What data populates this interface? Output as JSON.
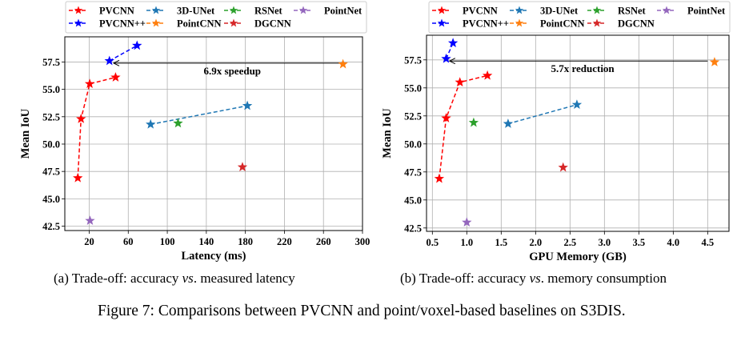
{
  "chart_data": [
    {
      "type": "scatter",
      "xlabel": "Latency (ms)",
      "ylabel": "Mean IoU",
      "xlim": [
        -5,
        300
      ],
      "ylim": [
        42.1,
        59.8
      ],
      "xticks": [
        20,
        60,
        100,
        140,
        180,
        220,
        260,
        300
      ],
      "xtick_labels": [
        "20",
        "60",
        "100",
        "140",
        "180",
        "220",
        "260",
        "300"
      ],
      "yticks": [
        42.5,
        45.0,
        47.5,
        50.0,
        52.5,
        55.0,
        57.5
      ],
      "ytick_labels": [
        "42.5",
        "45.0",
        "47.5",
        "50.0",
        "52.5",
        "55.0",
        "57.5"
      ],
      "grid": true,
      "legend_position": "top",
      "marker": "star",
      "series": [
        {
          "name": "PVCNN",
          "color": "#ff0000",
          "line": "dashed",
          "x": [
            8.3,
            11.6,
            20.5,
            47
          ],
          "y": [
            46.9,
            52.3,
            55.5,
            56.1
          ]
        },
        {
          "name": "PVCNN++",
          "color": "#0000ff",
          "line": "dashed",
          "x": [
            40.7,
            69
          ],
          "y": [
            57.6,
            59.0
          ]
        },
        {
          "name": "3D-UNet",
          "color": "#1f77b4",
          "line": "dashed",
          "x": [
            82.9,
            182
          ],
          "y": [
            51.8,
            53.5
          ]
        },
        {
          "name": "PointCNN",
          "color": "#ff7f0e",
          "line": "dashed",
          "x": [
            280
          ],
          "y": [
            57.3
          ]
        },
        {
          "name": "RSNet",
          "color": "#2ca02c",
          "line": "dashed",
          "x": [
            111
          ],
          "y": [
            51.9
          ]
        },
        {
          "name": "DGCNN",
          "color": "#d62728",
          "line": "dashed",
          "x": [
            177
          ],
          "y": [
            47.9
          ]
        },
        {
          "name": "PointNet",
          "color": "#9467bd",
          "line": "dashed",
          "x": [
            20.8
          ],
          "y": [
            43.0
          ]
        }
      ],
      "annotation": {
        "text": "6.9x speedup",
        "arrow_from": [
          280,
          57.4
        ],
        "arrow_to": [
          45,
          57.4
        ]
      },
      "caption": "(a) Trade-off: accuracy vs. measured latency",
      "caption_parts": [
        "(a) Trade-off: accuracy ",
        "vs",
        ". measured latency"
      ]
    },
    {
      "type": "scatter",
      "xlabel": "GPU Memory (GB)",
      "ylabel": "Mean IoU",
      "xlim": [
        0.415,
        4.81
      ],
      "ylim": [
        42.2,
        59.7
      ],
      "xticks": [
        0.5,
        1.0,
        1.5,
        2.0,
        2.5,
        3.0,
        3.5,
        4.0,
        4.5
      ],
      "xtick_labels": [
        "0.5",
        "1.0",
        "1.5",
        "2.0",
        "2.5",
        "3.0",
        "3.5",
        "4.0",
        "4.5"
      ],
      "yticks": [
        42.5,
        45.0,
        47.5,
        50.0,
        52.5,
        55.0,
        57.5
      ],
      "ytick_labels": [
        "42.5",
        "45.0",
        "47.5",
        "50.0",
        "52.5",
        "55.0",
        "57.5"
      ],
      "grid": true,
      "legend_position": "top",
      "marker": "star",
      "series": [
        {
          "name": "PVCNN",
          "color": "#ff0000",
          "line": "dashed",
          "x": [
            0.6,
            0.7,
            0.9,
            1.3
          ],
          "y": [
            46.9,
            52.3,
            55.5,
            56.1
          ]
        },
        {
          "name": "PVCNN++",
          "color": "#0000ff",
          "line": "dashed",
          "x": [
            0.7,
            0.8
          ],
          "y": [
            57.6,
            59.0
          ]
        },
        {
          "name": "3D-UNet",
          "color": "#1f77b4",
          "line": "dashed",
          "x": [
            1.6,
            2.6
          ],
          "y": [
            51.8,
            53.5
          ]
        },
        {
          "name": "PointCNN",
          "color": "#ff7f0e",
          "line": "dashed",
          "x": [
            4.6
          ],
          "y": [
            57.3
          ]
        },
        {
          "name": "RSNet",
          "color": "#2ca02c",
          "line": "dashed",
          "x": [
            1.1
          ],
          "y": [
            51.9
          ]
        },
        {
          "name": "DGCNN",
          "color": "#d62728",
          "line": "dashed",
          "x": [
            2.4
          ],
          "y": [
            47.9
          ]
        },
        {
          "name": "PointNet",
          "color": "#9467bd",
          "line": "dashed",
          "x": [
            1.0
          ],
          "y": [
            43.0
          ]
        }
      ],
      "annotation": {
        "text": "5.7x reduction",
        "arrow_from": [
          4.5,
          57.4
        ],
        "arrow_to": [
          0.75,
          57.4
        ]
      },
      "caption": "(b) Trade-off: accuracy vs. memory consumption",
      "caption_parts": [
        "(b) Trade-off: accuracy ",
        "vs",
        ". memory consumption"
      ]
    }
  ],
  "legend_order": [
    "PVCNN",
    "3D-UNet",
    "RSNet",
    "PointNet",
    "PVCNN++",
    "PointCNN",
    "DGCNN"
  ],
  "figure_caption": "Figure 7: Comparisons between PVCNN and point/voxel-based baselines on S3DIS."
}
